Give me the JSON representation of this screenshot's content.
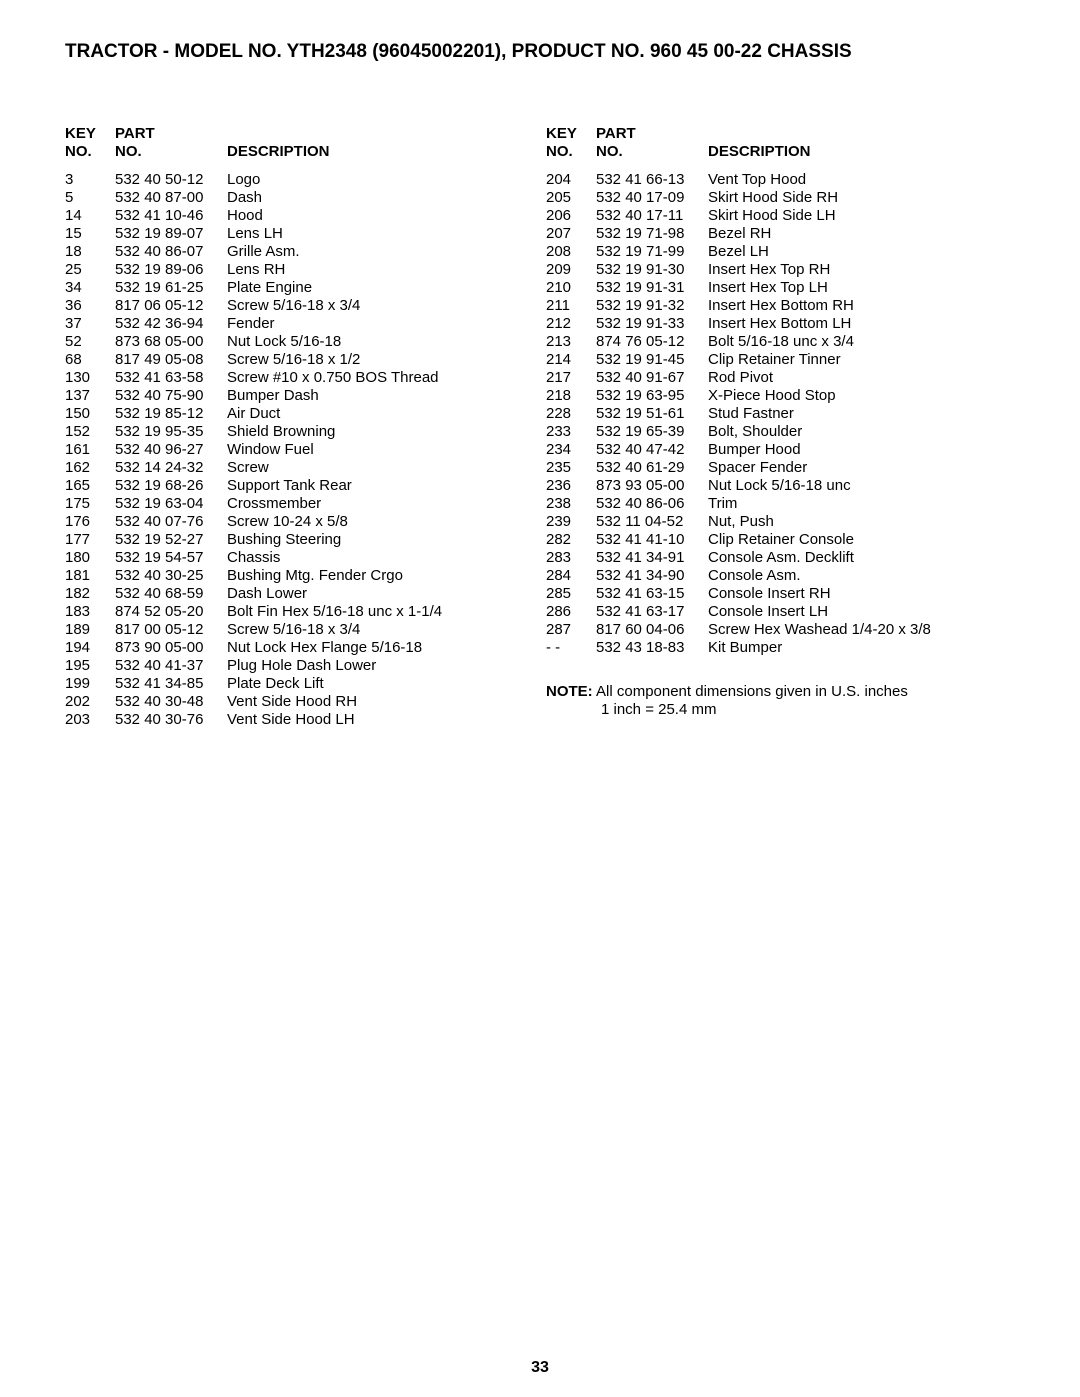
{
  "title": "TRACTOR - MODEL NO. YTH2348 (96045002201), PRODUCT NO. 960 45 00-22 CHASSIS",
  "headers": {
    "key1": "KEY",
    "key2": "NO.",
    "part1": "PART",
    "part2": "NO.",
    "desc": "DESCRIPTION"
  },
  "left": [
    {
      "key": "3",
      "part": "532 40 50-12",
      "desc": "Logo"
    },
    {
      "key": "5",
      "part": "532 40 87-00",
      "desc": "Dash"
    },
    {
      "key": "14",
      "part": "532 41 10-46",
      "desc": "Hood"
    },
    {
      "key": "15",
      "part": "532 19 89-07",
      "desc": "Lens LH"
    },
    {
      "key": "18",
      "part": "532 40 86-07",
      "desc": "Grille Asm."
    },
    {
      "key": "25",
      "part": "532 19 89-06",
      "desc": "Lens RH"
    },
    {
      "key": "34",
      "part": "532 19 61-25",
      "desc": "Plate Engine"
    },
    {
      "key": "36",
      "part": "817 06 05-12",
      "desc": "Screw 5/16-18 x 3/4"
    },
    {
      "key": "37",
      "part": "532 42 36-94",
      "desc": "Fender"
    },
    {
      "key": "52",
      "part": "873 68 05-00",
      "desc": "Nut Lock 5/16-18"
    },
    {
      "key": "68",
      "part": "817 49 05-08",
      "desc": "Screw 5/16-18 x 1/2"
    },
    {
      "key": "130",
      "part": "532 41 63-58",
      "desc": "Screw #10 x 0.750 BOS Thread"
    },
    {
      "key": "137",
      "part": "532 40 75-90",
      "desc": "Bumper Dash"
    },
    {
      "key": "150",
      "part": "532 19 85-12",
      "desc": "Air Duct"
    },
    {
      "key": "152",
      "part": "532 19 95-35",
      "desc": "Shield Browning"
    },
    {
      "key": "161",
      "part": "532 40 96-27",
      "desc": "Window Fuel"
    },
    {
      "key": "162",
      "part": "532 14 24-32",
      "desc": "Screw"
    },
    {
      "key": "165",
      "part": "532 19 68-26",
      "desc": "Support Tank Rear"
    },
    {
      "key": "175",
      "part": "532 19 63-04",
      "desc": "Crossmember"
    },
    {
      "key": "176",
      "part": "532 40 07-76",
      "desc": "Screw 10-24 x 5/8"
    },
    {
      "key": "177",
      "part": "532 19 52-27",
      "desc": "Bushing Steering"
    },
    {
      "key": "180",
      "part": "532 19 54-57",
      "desc": "Chassis"
    },
    {
      "key": "181",
      "part": "532 40 30-25",
      "desc": "Bushing Mtg. Fender Crgo"
    },
    {
      "key": "182",
      "part": "532 40 68-59",
      "desc": "Dash Lower"
    },
    {
      "key": "183",
      "part": "874 52 05-20",
      "desc": "Bolt Fin Hex 5/16-18 unc x 1-1/4"
    },
    {
      "key": "189",
      "part": "817 00 05-12",
      "desc": "Screw 5/16-18 x 3/4"
    },
    {
      "key": "194",
      "part": "873 90 05-00",
      "desc": "Nut Lock Hex Flange 5/16-18"
    },
    {
      "key": "195",
      "part": "532 40 41-37",
      "desc": "Plug Hole Dash Lower"
    },
    {
      "key": "199",
      "part": "532 41 34-85",
      "desc": "Plate Deck Lift"
    },
    {
      "key": "202",
      "part": "532 40 30-48",
      "desc": "Vent Side Hood RH"
    },
    {
      "key": "203",
      "part": "532 40 30-76",
      "desc": "Vent Side Hood LH"
    }
  ],
  "right": [
    {
      "key": "204",
      "part": "532 41 66-13",
      "desc": "Vent Top Hood"
    },
    {
      "key": "205",
      "part": "532 40 17-09",
      "desc": "Skirt Hood Side RH"
    },
    {
      "key": "206",
      "part": "532 40 17-11",
      "desc": "Skirt Hood Side LH"
    },
    {
      "key": "207",
      "part": "532 19 71-98",
      "desc": "Bezel RH"
    },
    {
      "key": "208",
      "part": "532 19 71-99",
      "desc": "Bezel LH"
    },
    {
      "key": "209",
      "part": "532 19 91-30",
      "desc": "Insert Hex Top RH"
    },
    {
      "key": "210",
      "part": "532 19 91-31",
      "desc": "Insert Hex Top LH"
    },
    {
      "key": "211",
      "part": "532 19 91-32",
      "desc": "Insert Hex Bottom RH"
    },
    {
      "key": "212",
      "part": "532 19 91-33",
      "desc": "Insert Hex Bottom LH"
    },
    {
      "key": "213",
      "part": "874 76 05-12",
      "desc": "Bolt 5/16-18 unc x 3/4"
    },
    {
      "key": "214",
      "part": "532 19 91-45",
      "desc": "Clip Retainer Tinner"
    },
    {
      "key": "217",
      "part": "532 40 91-67",
      "desc": "Rod Pivot"
    },
    {
      "key": "218",
      "part": "532 19 63-95",
      "desc": "X-Piece Hood Stop"
    },
    {
      "key": "228",
      "part": "532 19 51-61",
      "desc": "Stud Fastner"
    },
    {
      "key": "233",
      "part": "532 19 65-39",
      "desc": "Bolt, Shoulder"
    },
    {
      "key": "234",
      "part": "532 40 47-42",
      "desc": "Bumper Hood"
    },
    {
      "key": "235",
      "part": "532 40 61-29",
      "desc": "Spacer Fender"
    },
    {
      "key": "236",
      "part": "873 93 05-00",
      "desc": "Nut Lock 5/16-18 unc"
    },
    {
      "key": "238",
      "part": "532 40 86-06",
      "desc": "Trim"
    },
    {
      "key": "239",
      "part": "532 11 04-52",
      "desc": "Nut, Push"
    },
    {
      "key": "282",
      "part": "532 41 41-10",
      "desc": "Clip Retainer Console"
    },
    {
      "key": "283",
      "part": "532 41 34-91",
      "desc": "Console Asm. Decklift"
    },
    {
      "key": "284",
      "part": "532 41 34-90",
      "desc": "Console Asm."
    },
    {
      "key": "285",
      "part": "532 41 63-15",
      "desc": "Console Insert RH"
    },
    {
      "key": "286",
      "part": "532 41 63-17",
      "desc": "Console Insert LH"
    },
    {
      "key": "287",
      "part": "817 60 04-06",
      "desc": "Screw Hex Washead 1/4-20 x 3/8"
    },
    {
      "key": "- -",
      "part": "532 43 18-83",
      "desc": "Kit Bumper"
    }
  ],
  "note": {
    "label": "NOTE:",
    "text1": "All component dimensions given in U.S. inches",
    "text2": "1 inch = 25.4 mm"
  },
  "pageNumber": "33"
}
